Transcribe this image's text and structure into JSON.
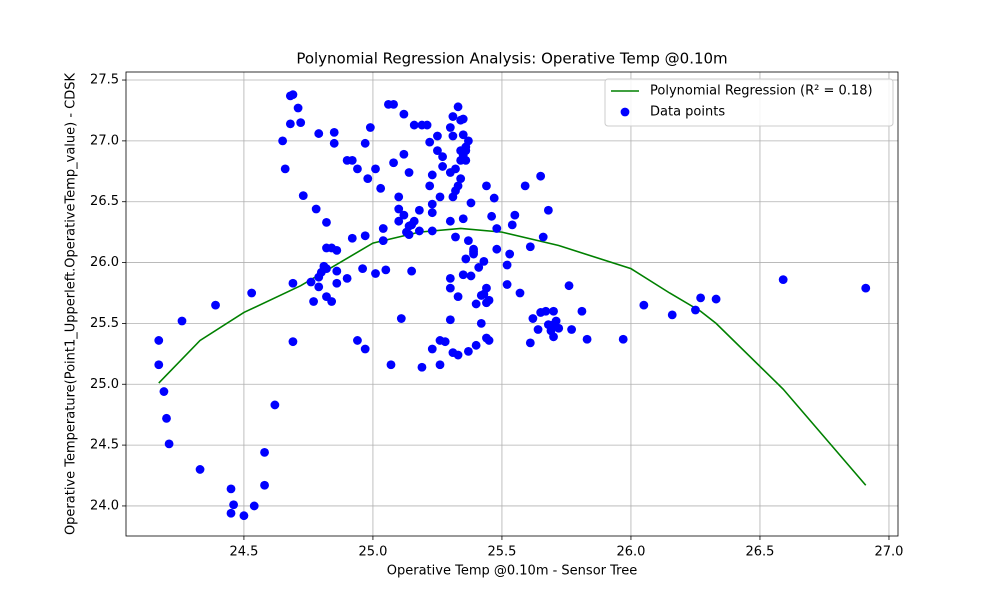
{
  "chart_data": {
    "type": "scatter",
    "title": "Polynomial Regression Analysis: Operative Temp @0.10m",
    "x_label": "Operative Temp @0.10m - Sensor Tree",
    "y_label": "Operative Temperature(Point1_Upperleft.OperativeTemp_value) - CDSK",
    "xlim": [
      24.043,
      27.035
    ],
    "ylim": [
      23.753,
      27.566
    ],
    "xticks": [
      24.5,
      {
        "value": 25,
        "label": "25.0"
      },
      25.5,
      {
        "value": 26,
        "label": "26.0"
      },
      26.5,
      {
        "value": 27,
        "label": "27.0"
      }
    ],
    "yticks": [
      {
        "value": 24,
        "label": "24.0"
      },
      24.5,
      {
        "value": 25,
        "label": "25.0"
      },
      25.5,
      {
        "value": 26,
        "label": "26.0"
      },
      26.5,
      {
        "value": 27,
        "label": "27.0"
      },
      27.5
    ],
    "grid": true,
    "legend": "upper right",
    "series": [
      {
        "name": "Polynomial Regression (R² = 0.18)",
        "type": "line",
        "color": "#008000",
        "x": [
          24.17,
          24.33,
          24.5,
          24.72,
          25.0,
          25.18,
          25.34,
          25.5,
          25.72,
          26.0,
          26.15,
          26.27,
          26.33,
          26.59,
          26.91
        ],
        "values": [
          25.01,
          25.36,
          25.59,
          25.81,
          26.16,
          26.25,
          26.28,
          26.25,
          26.14,
          25.95,
          25.75,
          25.6,
          25.5,
          24.96,
          24.17
        ]
      },
      {
        "name": "Data points",
        "type": "scatter",
        "color": "#0000ff",
        "x": [
          24.17,
          24.17,
          24.19,
          24.2,
          24.21,
          24.26,
          24.33,
          24.39,
          24.45,
          24.46,
          24.45,
          24.5,
          24.53,
          24.54,
          24.58,
          24.58,
          24.62,
          24.65,
          24.66,
          24.68,
          24.69,
          24.68,
          24.69,
          24.69,
          24.71,
          24.72,
          24.73,
          24.76,
          24.77,
          24.78,
          24.79,
          24.79,
          24.79,
          24.8,
          24.81,
          24.82,
          24.82,
          24.82,
          24.82,
          24.84,
          24.84,
          24.85,
          24.85,
          24.86,
          24.86,
          24.86,
          24.9,
          24.9,
          24.92,
          24.92,
          24.94,
          24.94,
          24.96,
          24.97,
          24.97,
          24.97,
          24.98,
          24.99,
          25.01,
          25.01,
          25.03,
          25.04,
          25.04,
          25.05,
          25.06,
          25.07,
          25.08,
          25.08,
          25.1,
          25.1,
          25.1,
          25.11,
          25.12,
          25.12,
          25.12,
          25.13,
          25.14,
          25.14,
          25.14,
          25.15,
          25.16,
          25.15,
          25.16,
          25.18,
          25.18,
          25.19,
          25.19,
          25.21,
          25.22,
          25.22,
          25.23,
          25.23,
          25.23,
          25.23,
          25.23,
          25.25,
          25.25,
          25.26,
          25.26,
          25.26,
          25.27,
          25.27,
          25.28,
          25.3,
          25.3,
          25.3,
          25.3,
          25.3,
          25.31,
          25.31,
          25.3,
          25.31,
          25.31,
          25.32,
          25.32,
          25.32,
          25.33,
          25.33,
          25.33,
          25.33,
          25.34,
          25.34,
          25.34,
          25.34,
          25.35,
          25.35,
          25.35,
          25.35,
          25.36,
          25.35,
          25.36,
          25.36,
          25.37,
          25.37,
          25.36,
          25.37,
          25.38,
          25.38,
          25.39,
          25.39,
          25.39,
          25.4,
          25.4,
          25.41,
          25.42,
          25.42,
          25.43,
          25.43,
          25.44,
          25.44,
          25.44,
          25.44,
          25.45,
          25.45,
          25.46,
          25.48,
          25.47,
          25.48,
          25.52,
          25.52,
          25.53,
          25.54,
          25.55,
          25.57,
          25.59,
          25.61,
          25.61,
          25.62,
          25.64,
          25.65,
          25.65,
          25.66,
          25.67,
          25.68,
          25.68,
          25.69,
          25.7,
          25.7,
          25.7,
          25.71,
          25.72,
          25.76,
          25.77,
          25.81,
          25.83,
          25.97,
          26.05,
          26.16,
          26.25,
          26.27,
          26.33,
          26.59,
          26.91
        ],
        "values": [
          25.36,
          25.16,
          24.94,
          24.72,
          24.51,
          25.52,
          24.3,
          25.65,
          24.14,
          24.01,
          23.94,
          23.92,
          25.75,
          24.0,
          24.17,
          24.44,
          24.83,
          27.0,
          26.77,
          27.37,
          27.38,
          27.14,
          25.83,
          25.35,
          27.27,
          27.15,
          26.55,
          25.84,
          25.68,
          26.44,
          27.06,
          25.88,
          25.8,
          25.92,
          25.97,
          26.33,
          26.12,
          25.95,
          25.72,
          25.68,
          26.12,
          27.07,
          26.98,
          25.83,
          25.93,
          26.1,
          26.84,
          25.87,
          26.2,
          26.84,
          26.77,
          25.36,
          25.95,
          26.22,
          25.29,
          26.98,
          26.69,
          27.11,
          26.77,
          25.91,
          26.61,
          26.18,
          26.28,
          25.94,
          27.3,
          25.16,
          27.3,
          26.82,
          26.54,
          26.34,
          26.44,
          25.54,
          26.89,
          26.39,
          27.22,
          26.25,
          26.3,
          26.23,
          26.74,
          26.31,
          26.34,
          25.93,
          27.13,
          26.43,
          26.26,
          25.14,
          27.13,
          27.13,
          26.99,
          26.63,
          26.48,
          26.72,
          25.29,
          26.41,
          26.26,
          27.04,
          26.92,
          25.16,
          26.54,
          25.36,
          26.79,
          26.87,
          25.35,
          26.74,
          25.87,
          27.11,
          25.79,
          26.34,
          26.54,
          25.26,
          25.53,
          27.04,
          27.2,
          26.21,
          26.59,
          26.77,
          25.24,
          27.28,
          26.63,
          25.72,
          26.92,
          26.84,
          26.69,
          27.17,
          27.05,
          26.88,
          27.18,
          25.9,
          26.84,
          26.36,
          26.03,
          26.92,
          25.27,
          27.0,
          26.95,
          26.18,
          26.49,
          25.89,
          26.09,
          26.07,
          26.11,
          25.66,
          25.32,
          25.96,
          25.73,
          25.5,
          26.01,
          25.74,
          26.63,
          25.79,
          25.67,
          25.38,
          25.36,
          25.69,
          26.38,
          26.11,
          26.53,
          26.28,
          25.98,
          25.82,
          26.07,
          26.31,
          26.39,
          25.75,
          26.63,
          25.34,
          26.13,
          25.54,
          25.45,
          25.59,
          26.71,
          26.21,
          25.6,
          26.43,
          25.49,
          25.44,
          25.39,
          25.6,
          25.49,
          25.52,
          25.46,
          25.81,
          25.45,
          25.6,
          25.37,
          25.37,
          25.65,
          25.57,
          25.61,
          25.71,
          25.7,
          25.86,
          25.79
        ]
      }
    ]
  }
}
